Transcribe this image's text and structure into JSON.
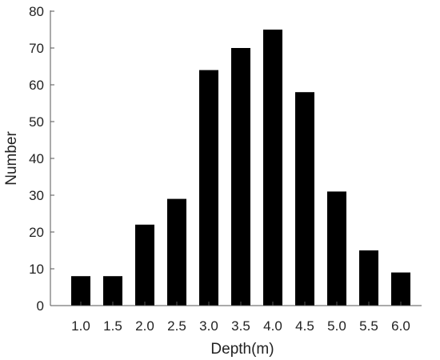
{
  "chart_data": {
    "type": "bar",
    "title": "",
    "xlabel": "Depth(m)",
    "ylabel": "Number",
    "categories": [
      "1.0",
      "1.5",
      "2.0",
      "2.5",
      "3.0",
      "3.5",
      "4.0",
      "4.5",
      "5.0",
      "5.5",
      "6.0"
    ],
    "values": [
      8,
      8,
      22,
      29,
      64,
      70,
      75,
      58,
      31,
      15,
      9
    ],
    "ylim": [
      0,
      80
    ],
    "yticks": [
      "0",
      "10",
      "20",
      "30",
      "40",
      "50",
      "60",
      "70",
      "80"
    ],
    "grid": false,
    "bar_color": "#000000"
  }
}
